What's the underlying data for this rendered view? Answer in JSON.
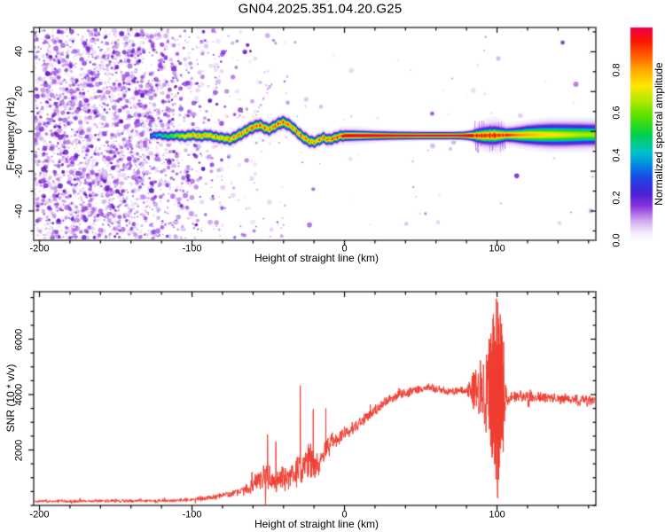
{
  "title": "GN04.2025.351.04.20.G25",
  "colors": {
    "snr_line": "#ef3b2f",
    "axis_frame": "#6b6b6b",
    "tick": "#000000",
    "noise_palette": [
      "#6a14c8",
      "#7a1fd6",
      "#8b2fe0",
      "#9b45e6",
      "#b06ae8",
      "#5a0cb8"
    ]
  },
  "chart_data": [
    {
      "type": "heatmap",
      "name": "spectrogram",
      "xlabel": "Height of straight line (km)",
      "ylabel": "Frequency (Hz)",
      "xlim": [
        -203.8,
        164.8
      ],
      "ylim": [
        -54.7,
        52.2
      ],
      "xticks": {
        "values": [
          -200,
          -100,
          0,
          100
        ],
        "labels": [
          "-200",
          "-100",
          "0",
          "100"
        ],
        "minor_step": 20
      },
      "yticks": {
        "values": [
          -40,
          -20,
          0,
          20,
          40
        ],
        "labels": [
          "-40",
          "-20",
          "0",
          "20",
          "40"
        ],
        "minor_step": 10
      },
      "grid": false,
      "colorbar": {
        "label": "Normalized spectral amplitude",
        "range": [
          0,
          1
        ],
        "tick_values": [
          0,
          0.2,
          0.4,
          0.6,
          0.8
        ],
        "tick_labels": [
          "0.0",
          "0.2",
          "0.4",
          "0.6",
          "0.8"
        ],
        "stops": [
          [
            0.0,
            "#ffffff"
          ],
          [
            0.04,
            "#f3eafb"
          ],
          [
            0.1,
            "#c9a0ee"
          ],
          [
            0.16,
            "#8d35e0"
          ],
          [
            0.22,
            "#4b1fd8"
          ],
          [
            0.3,
            "#1b49e4"
          ],
          [
            0.36,
            "#008ee0"
          ],
          [
            0.42,
            "#00c4c4"
          ],
          [
            0.5,
            "#00d24a"
          ],
          [
            0.58,
            "#54e000"
          ],
          [
            0.66,
            "#b4ea00"
          ],
          [
            0.73,
            "#ffe600"
          ],
          [
            0.8,
            "#ffab00"
          ],
          [
            0.87,
            "#ff5d00"
          ],
          [
            0.94,
            "#fb1500"
          ],
          [
            1.0,
            "#ef0048"
          ]
        ]
      },
      "noise_profile": {
        "dense_until": -138,
        "fade_until": -95,
        "weak_until": -55,
        "dense_density": 0.8,
        "mid_density": 0.22,
        "weak_density": 0.04,
        "sparse_density": 0.009
      },
      "diagonal_streak": {
        "from": [
          -63,
          2
        ],
        "to": [
          -48,
          24
        ]
      },
      "disturbance": {
        "x_range": [
          84,
          105
        ],
        "spike_freq_extent": 9
      },
      "band_points": [
        [
          -128,
          -2.0,
          0.3,
          1.2,
          2.2
        ],
        [
          -122,
          -1.6,
          0.45,
          1.5,
          2.8
        ],
        [
          -116,
          -2.3,
          0.55,
          1.6,
          3.0
        ],
        [
          -110,
          -1.8,
          0.68,
          1.7,
          3.2
        ],
        [
          -105,
          -2.3,
          0.8,
          1.8,
          3.4
        ],
        [
          -100,
          -1.5,
          0.85,
          1.8,
          3.5
        ],
        [
          -95,
          -2.2,
          0.88,
          1.8,
          3.5
        ],
        [
          -90,
          -1.6,
          0.85,
          1.8,
          3.5
        ],
        [
          -85,
          -2.6,
          0.85,
          1.8,
          3.5
        ],
        [
          -80,
          -3.2,
          0.85,
          1.8,
          3.5
        ],
        [
          -75,
          -3.8,
          0.88,
          1.9,
          3.6
        ],
        [
          -71,
          -2.2,
          0.9,
          2.0,
          3.8
        ],
        [
          -67,
          -0.6,
          0.9,
          2.0,
          3.8
        ],
        [
          -63,
          1.4,
          0.92,
          2.0,
          3.8
        ],
        [
          -59,
          2.6,
          0.95,
          2.0,
          3.8
        ],
        [
          -56,
          3.4,
          0.95,
          2.0,
          3.8
        ],
        [
          -53,
          2.2,
          0.92,
          2.0,
          3.8
        ],
        [
          -50,
          1.2,
          0.9,
          2.0,
          3.8
        ],
        [
          -47,
          2.4,
          0.92,
          2.0,
          4.0
        ],
        [
          -44,
          3.8,
          0.95,
          2.0,
          4.2
        ],
        [
          -41,
          4.8,
          0.95,
          2.0,
          4.2
        ],
        [
          -38,
          4.0,
          0.92,
          2.0,
          4.0
        ],
        [
          -35,
          2.6,
          0.9,
          2.0,
          3.8
        ],
        [
          -32,
          0.4,
          0.9,
          2.0,
          3.8
        ],
        [
          -29,
          -1.8,
          0.92,
          2.0,
          3.8
        ],
        [
          -26,
          -3.4,
          0.92,
          2.0,
          3.8
        ],
        [
          -23,
          -4.8,
          0.9,
          1.9,
          3.6
        ],
        [
          -20,
          -5.2,
          0.88,
          1.8,
          3.5
        ],
        [
          -17,
          -4.0,
          0.9,
          1.8,
          3.5
        ],
        [
          -14,
          -3.0,
          0.92,
          1.8,
          3.5
        ],
        [
          -11,
          -4.0,
          0.93,
          1.8,
          3.6
        ],
        [
          -8,
          -3.4,
          0.95,
          1.8,
          3.8
        ],
        [
          -5,
          -2.6,
          0.97,
          1.8,
          4.0
        ],
        [
          -2,
          -2.0,
          1.0,
          1.7,
          4.4
        ],
        [
          5,
          -1.9,
          1.0,
          1.6,
          4.4
        ],
        [
          12,
          -1.9,
          1.0,
          1.5,
          4.0
        ],
        [
          20,
          -1.9,
          1.0,
          1.4,
          3.4
        ],
        [
          30,
          -1.9,
          1.0,
          1.3,
          2.9
        ],
        [
          40,
          -1.9,
          1.0,
          1.25,
          2.6
        ],
        [
          50,
          -1.9,
          1.0,
          1.2,
          2.4
        ],
        [
          60,
          -1.9,
          1.0,
          1.2,
          2.3
        ],
        [
          70,
          -1.9,
          1.0,
          1.2,
          2.2
        ],
        [
          78,
          -1.9,
          1.0,
          1.3,
          2.4
        ],
        [
          83,
          -1.9,
          1.0,
          1.6,
          3.2
        ],
        [
          87,
          -1.9,
          0.97,
          2.2,
          5.0
        ],
        [
          91,
          -1.9,
          0.97,
          2.6,
          6.2
        ],
        [
          95,
          -1.8,
          0.97,
          2.8,
          6.8
        ],
        [
          99,
          -1.8,
          0.97,
          2.8,
          7.2
        ],
        [
          103,
          -1.7,
          0.93,
          2.4,
          6.0
        ],
        [
          106,
          -1.6,
          0.85,
          2.1,
          5.0
        ],
        [
          110,
          -1.6,
          0.78,
          2.3,
          5.0
        ],
        [
          115,
          -1.6,
          0.73,
          2.7,
          5.5
        ],
        [
          120,
          -1.5,
          0.7,
          3.1,
          6.0
        ],
        [
          128,
          -1.5,
          0.66,
          3.5,
          6.5
        ],
        [
          136,
          -1.5,
          0.63,
          3.7,
          7.0
        ],
        [
          145,
          -1.5,
          0.6,
          3.7,
          7.0
        ],
        [
          155,
          -1.4,
          0.56,
          3.6,
          7.0
        ],
        [
          164.8,
          -1.4,
          0.55,
          3.5,
          6.8
        ]
      ]
    },
    {
      "type": "line",
      "name": "snr",
      "xlabel": "Height of straight line (km)",
      "ylabel": "SNR (10 * v/v)",
      "xlim": [
        -203.8,
        164.8
      ],
      "ylim": [
        0,
        7712
      ],
      "xticks": {
        "values": [
          -200,
          -100,
          0,
          100
        ],
        "labels": [
          "-200",
          "-100",
          "0",
          "100"
        ],
        "minor_step": 20
      },
      "yticks": {
        "values": [
          2000,
          4000,
          6000
        ],
        "labels": [
          "2000",
          "4000",
          "6000"
        ],
        "minor_step": 500
      },
      "grid": false,
      "series": [
        {
          "name": "SNR",
          "color": "#ef3b2f",
          "anchors": [
            [
              -203,
              150,
              70
            ],
            [
              -160,
              155,
              70
            ],
            [
              -130,
              165,
              70
            ],
            [
              -110,
              180,
              75
            ],
            [
              -95,
              230,
              90
            ],
            [
              -85,
              300,
              110
            ],
            [
              -78,
              380,
              140
            ],
            [
              -72,
              450,
              170
            ],
            [
              -67,
              520,
              220
            ],
            [
              -62,
              600,
              280
            ],
            [
              -58,
              800,
              450
            ],
            [
              -54,
              1000,
              650
            ],
            [
              -50,
              950,
              700
            ],
            [
              -47,
              800,
              450
            ],
            [
              -44,
              850,
              450
            ],
            [
              -41,
              1000,
              500
            ],
            [
              -38,
              950,
              450
            ],
            [
              -35,
              1050,
              500
            ],
            [
              -32,
              1200,
              600
            ],
            [
              -29,
              1400,
              800
            ],
            [
              -27,
              1350,
              650
            ],
            [
              -25,
              1500,
              700
            ],
            [
              -23,
              1600,
              750
            ],
            [
              -21,
              1550,
              700
            ],
            [
              -19,
              1350,
              500
            ],
            [
              -17,
              1300,
              450
            ],
            [
              -15,
              1700,
              450
            ],
            [
              -13,
              1950,
              500
            ],
            [
              -11,
              2150,
              450
            ],
            [
              -9,
              2250,
              380
            ],
            [
              -7,
              2300,
              350
            ],
            [
              -4,
              2450,
              320
            ],
            [
              0,
              2600,
              300
            ],
            [
              4,
              2750,
              280
            ],
            [
              8,
              2900,
              260
            ],
            [
              12,
              3080,
              260
            ],
            [
              16,
              3260,
              240
            ],
            [
              20,
              3440,
              220
            ],
            [
              24,
              3600,
              210
            ],
            [
              28,
              3770,
              200
            ],
            [
              32,
              3900,
              190
            ],
            [
              36,
              4000,
              180
            ],
            [
              40,
              4060,
              180
            ],
            [
              44,
              4120,
              180
            ],
            [
              48,
              4170,
              180
            ],
            [
              52,
              4210,
              170
            ],
            [
              56,
              4240,
              170
            ],
            [
              60,
              4210,
              160
            ],
            [
              64,
              4170,
              160
            ],
            [
              68,
              4130,
              160
            ],
            [
              72,
              4120,
              160
            ],
            [
              76,
              4150,
              170
            ],
            [
              80,
              4160,
              220
            ],
            [
              82,
              4180,
              420
            ],
            [
              84,
              4150,
              800
            ],
            [
              86,
              4100,
              1150
            ],
            [
              88,
              4200,
              1400
            ],
            [
              90,
              4150,
              1500
            ],
            [
              92,
              4100,
              1600
            ],
            [
              94,
              4150,
              1750
            ],
            [
              96,
              4100,
              2300
            ],
            [
              98,
              4050,
              3100
            ],
            [
              100,
              4000,
              3550
            ],
            [
              102,
              4000,
              3100
            ],
            [
              104,
              4000,
              2200
            ],
            [
              105.5,
              3980,
              900
            ],
            [
              107,
              3950,
              420
            ],
            [
              109,
              3950,
              280
            ],
            [
              113,
              3930,
              230
            ],
            [
              120,
              3910,
              220
            ],
            [
              128,
              3900,
              220
            ],
            [
              136,
              3870,
              220
            ],
            [
              144,
              3840,
              220
            ],
            [
              152,
              3810,
              230
            ],
            [
              158,
              3790,
              240
            ],
            [
              165,
              3770,
              250
            ]
          ],
          "spikes": [
            [
              -50.5,
              2560
            ],
            [
              -45,
              2300
            ],
            [
              -29,
              4330
            ],
            [
              -20.5,
              3470
            ],
            [
              -12.2,
              3500
            ],
            [
              97.6,
              6900
            ],
            [
              99.6,
              7460
            ],
            [
              100.4,
              260
            ],
            [
              101.2,
              6550
            ],
            [
              103,
              6100
            ]
          ]
        }
      ]
    }
  ]
}
